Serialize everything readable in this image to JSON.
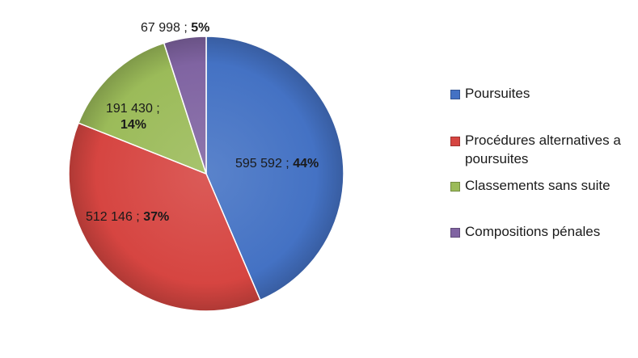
{
  "chart_data": {
    "type": "pie",
    "title": "",
    "slices": [
      {
        "label": "Poursuites",
        "value": 595592,
        "value_text": "595 592 ;",
        "percent_text": "44%",
        "color": "#4472C4"
      },
      {
        "label": "Procédures alternatives a poursuites",
        "value": 512146,
        "value_text": "512 146 ;",
        "percent_text": "37%",
        "color": "#D64541"
      },
      {
        "label": "Classements sans suite",
        "value": 191430,
        "value_text": "191 430 ;",
        "percent_text": "14%",
        "color": "#9BBB59"
      },
      {
        "label": "Compositions pénales",
        "value": 67998,
        "value_text": "67 998 ;",
        "percent_text": "5%",
        "color": "#8064A2"
      }
    ],
    "legend_position": "right"
  },
  "legend": {
    "items": [
      {
        "label": "Poursuites",
        "line1": "Poursuites"
      },
      {
        "label": "Procédures alternatives a poursuites",
        "line1": "Procédures alternatives a",
        "line2": "poursuites"
      },
      {
        "label": "Classements sans suite",
        "line1": "Classements sans suite"
      },
      {
        "label": "Compositions pénales",
        "line1": "Compositions pénales"
      }
    ]
  }
}
